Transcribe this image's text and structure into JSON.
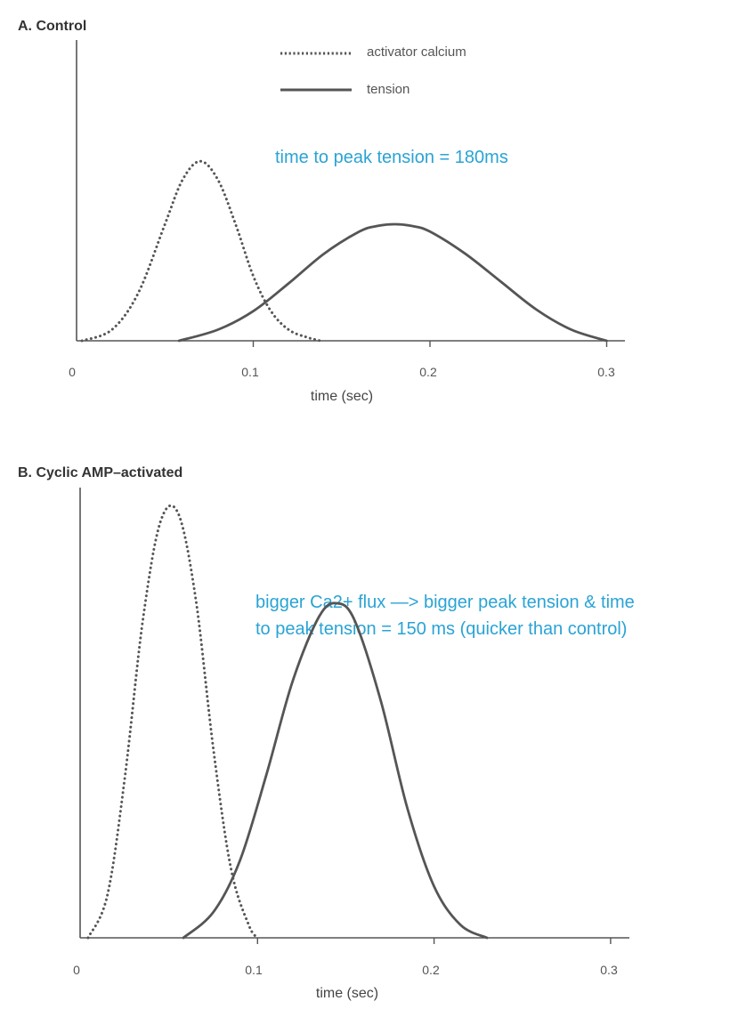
{
  "colors": {
    "axis": "#555555",
    "curve": "#555555",
    "annotation": "#2aa3d4"
  },
  "legend": {
    "calcium_label": "activator calcium",
    "tension_label": "tension"
  },
  "chart_data": [
    {
      "type": "line",
      "title": "A. Control",
      "xlabel": "time (sec)",
      "ylabel": "",
      "xlim": [
        0,
        0.3
      ],
      "x_ticks": [
        "0",
        "0.1",
        "0.2",
        "0.3"
      ],
      "grid": false,
      "legend_position": "top-center",
      "annotation": "time to peak tension = 180ms",
      "series": [
        {
          "name": "activator calcium",
          "style": "dotted",
          "x": [
            0.003,
            0.02,
            0.035,
            0.05,
            0.06,
            0.07,
            0.08,
            0.09,
            0.1,
            0.11,
            0.12,
            0.13,
            0.138
          ],
          "y": [
            0.0,
            0.06,
            0.26,
            0.63,
            0.87,
            0.97,
            0.87,
            0.63,
            0.35,
            0.16,
            0.06,
            0.02,
            0.0
          ]
        },
        {
          "name": "tension",
          "style": "solid",
          "x": [
            0.058,
            0.08,
            0.1,
            0.12,
            0.14,
            0.16,
            0.17,
            0.18,
            0.19,
            0.2,
            0.22,
            0.24,
            0.26,
            0.28,
            0.3
          ],
          "y": [
            0.0,
            0.06,
            0.16,
            0.31,
            0.47,
            0.59,
            0.62,
            0.63,
            0.62,
            0.59,
            0.47,
            0.32,
            0.17,
            0.06,
            0.0
          ]
        }
      ]
    },
    {
      "type": "line",
      "title": "B. Cyclic AMP–activated",
      "xlabel": "time (sec)",
      "ylabel": "",
      "xlim": [
        0,
        0.3
      ],
      "x_ticks": [
        "0",
        "0.1",
        "0.2",
        "0.3"
      ],
      "grid": false,
      "annotation_lines": [
        "bigger Ca2+ flux —> bigger peak tension & time",
        "to peak tension = 150 ms (quicker than control)"
      ],
      "series": [
        {
          "name": "activator calcium",
          "style": "dotted",
          "x": [
            0.004,
            0.015,
            0.025,
            0.035,
            0.045,
            0.055,
            0.065,
            0.075,
            0.085,
            0.095,
            0.1
          ],
          "y": [
            0.0,
            0.1,
            0.38,
            0.74,
            0.97,
            0.99,
            0.79,
            0.44,
            0.16,
            0.03,
            0.0
          ]
        },
        {
          "name": "tension",
          "style": "solid",
          "x": [
            0.058,
            0.075,
            0.09,
            0.105,
            0.12,
            0.135,
            0.145,
            0.155,
            0.17,
            0.185,
            0.2,
            0.215,
            0.23
          ],
          "y": [
            0.0,
            0.06,
            0.18,
            0.38,
            0.6,
            0.75,
            0.78,
            0.74,
            0.55,
            0.3,
            0.12,
            0.03,
            0.0
          ]
        }
      ]
    }
  ]
}
